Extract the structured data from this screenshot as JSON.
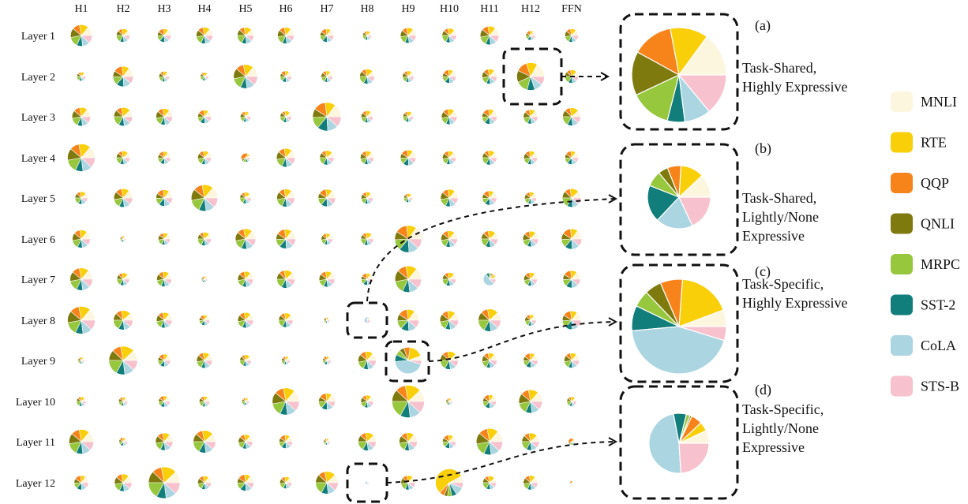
{
  "chart_data": {
    "type": "pie",
    "columns": [
      "H1",
      "H2",
      "H3",
      "H4",
      "H5",
      "H6",
      "H7",
      "H8",
      "H9",
      "H10",
      "H11",
      "H12",
      "FFN"
    ],
    "rows": [
      "Layer 1",
      "Layer 2",
      "Layer 3",
      "Layer 4",
      "Layer 5",
      "Layer 6",
      "Layer 7",
      "Layer 8",
      "Layer 9",
      "Layer 10",
      "Layer 11",
      "Layer 12"
    ],
    "legend": [
      {
        "name": "MNLI",
        "color": "#FDF6DF"
      },
      {
        "name": "RTE",
        "color": "#F9CF0A"
      },
      {
        "name": "QQP",
        "color": "#F7831B"
      },
      {
        "name": "QNLI",
        "color": "#7E7A0E"
      },
      {
        "name": "MRPC",
        "color": "#97C73D"
      },
      {
        "name": "SST-2",
        "color": "#127E7C"
      },
      {
        "name": "CoLA",
        "color": "#ABD5E1"
      },
      {
        "name": "STS-B",
        "color": "#F7C2CE"
      }
    ],
    "profiles": {
      "balanced": [
        0.14,
        0.14,
        0.11,
        0.14,
        0.15,
        0.09,
        0.11,
        0.12
      ],
      "shared": [
        0.17,
        0.13,
        0.13,
        0.14,
        0.14,
        0.09,
        0.1,
        0.1
      ],
      "variantA": [
        0.12,
        0.16,
        0.1,
        0.12,
        0.17,
        0.1,
        0.11,
        0.12
      ],
      "variantB": [
        0.15,
        0.12,
        0.14,
        0.1,
        0.13,
        0.12,
        0.12,
        0.12
      ],
      "rte_heavy": [
        0.08,
        0.55,
        0.06,
        0.04,
        0.05,
        0.06,
        0.1,
        0.06
      ],
      "cola_heavy": [
        0.05,
        0.08,
        0.04,
        0.03,
        0.06,
        0.08,
        0.54,
        0.12
      ],
      "lightly": [
        0.12,
        0.12,
        0.07,
        0.05,
        0.08,
        0.18,
        0.2,
        0.18
      ],
      "specific_light": [
        0.07,
        0.05,
        0.07,
        0.01,
        0.02,
        0.07,
        0.47,
        0.24
      ],
      "specific_high": [
        0.06,
        0.18,
        0.08,
        0.06,
        0.07,
        0.09,
        0.46,
        0.05
      ],
      "qqp_heavy": [
        0.07,
        0.1,
        0.4,
        0.08,
        0.12,
        0.08,
        0.07,
        0.08
      ]
    },
    "heads": [
      [
        [
          0.72,
          "balanced"
        ],
        [
          0.45,
          "variantA"
        ],
        [
          0.45,
          "variantB"
        ],
        [
          0.55,
          "balanced"
        ],
        [
          0.55,
          "variantA"
        ],
        [
          0.55,
          "balanced"
        ],
        [
          0.45,
          "variantB"
        ],
        [
          0.3,
          "variantA"
        ],
        [
          0.52,
          "balanced"
        ],
        [
          0.48,
          "variantA"
        ],
        [
          0.62,
          "balanced"
        ],
        [
          0.32,
          "variantB"
        ],
        [
          0.45,
          "balanced"
        ]
      ],
      [
        [
          0.3,
          "variantA"
        ],
        [
          0.68,
          "variantB"
        ],
        [
          0.35,
          "balanced"
        ],
        [
          0.28,
          "variantA"
        ],
        [
          0.8,
          "balanced"
        ],
        [
          0.38,
          "variantB"
        ],
        [
          0.38,
          "balanced"
        ],
        [
          0.5,
          "variantA"
        ],
        [
          0.38,
          "balanced"
        ],
        [
          0.45,
          "variantB"
        ],
        [
          0.5,
          "balanced"
        ],
        [
          0.92,
          "shared"
        ],
        [
          0.45,
          "variantA"
        ]
      ],
      [
        [
          0.62,
          "balanced"
        ],
        [
          0.62,
          "variantA"
        ],
        [
          0.55,
          "balanced"
        ],
        [
          0.45,
          "variantB"
        ],
        [
          0.35,
          "balanced"
        ],
        [
          0.38,
          "variantA"
        ],
        [
          0.95,
          "variantB"
        ],
        [
          0.4,
          "balanced"
        ],
        [
          0.35,
          "variantA"
        ],
        [
          0.52,
          "balanced"
        ],
        [
          0.5,
          "variantB"
        ],
        [
          0.48,
          "balanced"
        ],
        [
          0.6,
          "variantA"
        ]
      ],
      [
        [
          0.92,
          "balanced"
        ],
        [
          0.45,
          "variantA"
        ],
        [
          0.42,
          "variantB"
        ],
        [
          0.45,
          "balanced"
        ],
        [
          0.3,
          "qqp_heavy"
        ],
        [
          0.62,
          "balanced"
        ],
        [
          0.48,
          "variantA"
        ],
        [
          0.45,
          "balanced"
        ],
        [
          0.52,
          "variantB"
        ],
        [
          0.45,
          "balanced"
        ],
        [
          0.48,
          "variantA"
        ],
        [
          0.45,
          "balanced"
        ],
        [
          0.45,
          "variantB"
        ]
      ],
      [
        [
          0.42,
          "variantA"
        ],
        [
          0.62,
          "balanced"
        ],
        [
          0.55,
          "variantB"
        ],
        [
          0.88,
          "balanced"
        ],
        [
          0.38,
          "variantA"
        ],
        [
          0.6,
          "balanced"
        ],
        [
          0.58,
          "variantB"
        ],
        [
          0.4,
          "balanced"
        ],
        [
          0.3,
          "variantA"
        ],
        [
          0.58,
          "balanced"
        ],
        [
          0.48,
          "variantB"
        ],
        [
          0.4,
          "balanced"
        ],
        [
          0.62,
          "variantA"
        ]
      ],
      [
        [
          0.6,
          "balanced"
        ],
        [
          0.2,
          "variantB"
        ],
        [
          0.4,
          "balanced"
        ],
        [
          0.45,
          "variantA"
        ],
        [
          0.68,
          "balanced"
        ],
        [
          0.65,
          "variantB"
        ],
        [
          0.38,
          "balanced"
        ],
        [
          0.42,
          "variantA"
        ],
        [
          0.9,
          "variantB"
        ],
        [
          0.55,
          "balanced"
        ],
        [
          0.55,
          "variantA"
        ],
        [
          0.52,
          "balanced"
        ],
        [
          0.68,
          "variantB"
        ]
      ],
      [
        [
          0.75,
          "balanced"
        ],
        [
          0.42,
          "variantA"
        ],
        [
          0.5,
          "balanced"
        ],
        [
          0.2,
          "variantB"
        ],
        [
          0.52,
          "balanced"
        ],
        [
          0.6,
          "variantA"
        ],
        [
          0.52,
          "balanced"
        ],
        [
          0.4,
          "variantB"
        ],
        [
          0.88,
          "balanced"
        ],
        [
          0.45,
          "variantA"
        ],
        [
          0.42,
          "cola_heavy"
        ],
        [
          0.45,
          "balanced"
        ],
        [
          0.58,
          "variantB"
        ]
      ],
      [
        [
          0.92,
          "balanced"
        ],
        [
          0.65,
          "variantA"
        ],
        [
          0.52,
          "balanced"
        ],
        [
          0.35,
          "variantB"
        ],
        [
          0.52,
          "balanced"
        ],
        [
          0.48,
          "variantA"
        ],
        [
          0.2,
          "balanced"
        ],
        [
          0.2,
          "specific_light"
        ],
        [
          0.72,
          "variantB"
        ],
        [
          0.62,
          "balanced"
        ],
        [
          0.75,
          "variantA"
        ],
        [
          0.38,
          "balanced"
        ],
        [
          0.62,
          "variantB"
        ]
      ],
      [
        [
          0.22,
          "balanced"
        ],
        [
          0.95,
          "variantA"
        ],
        [
          0.42,
          "variantB"
        ],
        [
          0.52,
          "balanced"
        ],
        [
          0.38,
          "variantA"
        ],
        [
          0.28,
          "balanced"
        ],
        [
          0.28,
          "variantB"
        ],
        [
          0.6,
          "balanced"
        ],
        [
          0.88,
          "specific_high"
        ],
        [
          0.6,
          "variantA"
        ],
        [
          0.5,
          "balanced"
        ],
        [
          0.48,
          "variantB"
        ],
        [
          0.5,
          "balanced"
        ]
      ],
      [
        [
          0.32,
          "variantA"
        ],
        [
          0.3,
          "balanced"
        ],
        [
          0.38,
          "variantB"
        ],
        [
          0.35,
          "balanced"
        ],
        [
          0.25,
          "variantA"
        ],
        [
          0.9,
          "balanced"
        ],
        [
          0.55,
          "variantB"
        ],
        [
          0.42,
          "balanced"
        ],
        [
          1.08,
          "variantA"
        ],
        [
          0.22,
          "balanced"
        ],
        [
          0.45,
          "variantB"
        ],
        [
          0.78,
          "balanced"
        ],
        [
          0.32,
          "variantA"
        ]
      ],
      [
        [
          0.82,
          "balanced"
        ],
        [
          0.28,
          "variantB"
        ],
        [
          0.58,
          "balanced"
        ],
        [
          0.75,
          "variantA"
        ],
        [
          0.48,
          "balanced"
        ],
        [
          0.45,
          "variantB"
        ],
        [
          0.22,
          "balanced"
        ],
        [
          0.6,
          "variantA"
        ],
        [
          0.6,
          "balanced"
        ],
        [
          0.45,
          "variantB"
        ],
        [
          0.88,
          "balanced"
        ],
        [
          0.58,
          "variantA"
        ],
        [
          0.22,
          "qqp_heavy"
        ]
      ],
      [
        [
          0.48,
          "variantB"
        ],
        [
          0.58,
          "balanced"
        ],
        [
          1.05,
          "variantA"
        ],
        [
          0.45,
          "balanced"
        ],
        [
          0.55,
          "variantB"
        ],
        [
          0.4,
          "balanced"
        ],
        [
          0.75,
          "variantA"
        ],
        [
          0.12,
          "specific_light"
        ],
        [
          0.48,
          "balanced"
        ],
        [
          0.92,
          "rte_heavy"
        ],
        [
          0.45,
          "variantA"
        ],
        [
          0.48,
          "balanced"
        ],
        [
          0.12,
          "qqp_heavy"
        ]
      ]
    ],
    "panels": [
      {
        "letter": "(a)",
        "desc": [
          "Task-Shared,",
          "Highly Expressive"
        ],
        "values": [
          0.15,
          0.13,
          0.14,
          0.15,
          0.14,
          0.06,
          0.09,
          0.14
        ]
      },
      {
        "letter": "(b)",
        "desc": [
          "Task-Shared,",
          "Lightly/None",
          "Expressive"
        ],
        "values": [
          0.12,
          0.12,
          0.07,
          0.05,
          0.08,
          0.19,
          0.19,
          0.18
        ]
      },
      {
        "letter": "(c)",
        "desc": [
          "Task-Specific,",
          "Highly Expressive"
        ],
        "values": [
          0.06,
          0.19,
          0.08,
          0.06,
          0.06,
          0.09,
          0.46,
          0.05
        ]
      },
      {
        "letter": "(d)",
        "desc": [
          "Task-Specific,",
          "Lightly/None",
          "Expressive"
        ],
        "values": [
          0.07,
          0.05,
          0.06,
          0.01,
          0.02,
          0.07,
          0.48,
          0.24
        ]
      }
    ]
  }
}
